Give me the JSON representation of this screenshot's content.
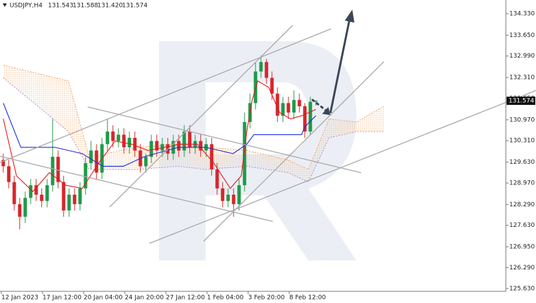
{
  "chart_data": {
    "type": "candlestick",
    "title": "USDJPY,H4",
    "header_values": [
      "131.543",
      "131.588",
      "131.420",
      "131.574"
    ],
    "up_color": "#1f9a4a",
    "down_color": "#d6262b",
    "x": [
      0.6,
      1.6,
      2.6,
      3.6,
      4.6,
      5.6,
      6.6,
      7.6,
      8.6,
      9.6,
      10.6,
      11.6,
      12.6,
      13.6,
      14.6,
      15.6,
      16.6,
      17.6,
      18.6,
      19.6,
      20.6,
      21.6,
      22.6,
      23.6,
      24.6,
      25.6,
      26.6,
      27.6,
      28.6,
      29.6,
      30.6,
      31.6,
      32.6,
      33.6,
      34.6,
      35.6,
      36.6,
      37.6,
      38.6,
      39.6,
      40.6,
      41.6,
      42.6,
      43.6,
      44.6,
      45.6,
      46.6,
      47.6,
      48.6,
      49.6,
      50.6,
      51.6,
      52.6,
      53.6,
      54.6,
      55.6,
      56.6,
      57.6
    ],
    "open": [
      129.7,
      129.5,
      129.0,
      128.3,
      127.9,
      128.5,
      128.9,
      128.6,
      128.4,
      128.9,
      129.8,
      129.0,
      128.1,
      128.6,
      128.3,
      128.8,
      129.6,
      130.0,
      129.3,
      130.2,
      130.6,
      130.3,
      130.5,
      130.1,
      130.4,
      130.0,
      129.5,
      129.8,
      130.3,
      130.0,
      130.2,
      129.9,
      130.3,
      130.0,
      130.6,
      130.1,
      130.3,
      130.0,
      130.2,
      129.4,
      128.8,
      128.4,
      128.6,
      128.3,
      128.9,
      130.9,
      131.5,
      132.5,
      132.8,
      132.3,
      131.8,
      131.1,
      131.5,
      131.2,
      131.6,
      131.4,
      130.6,
      131.543
    ],
    "high": [
      129.9,
      129.7,
      129.2,
      128.5,
      128.7,
      129.1,
      129.1,
      128.8,
      129.1,
      131.0,
      130.0,
      129.2,
      128.8,
      128.8,
      129.0,
      129.8,
      130.3,
      130.2,
      130.4,
      131.0,
      130.8,
      130.7,
      130.7,
      130.6,
      130.6,
      130.2,
      129.9,
      130.5,
      130.5,
      130.4,
      130.4,
      130.5,
      130.5,
      130.8,
      130.8,
      130.5,
      130.5,
      130.4,
      130.4,
      129.6,
      129.0,
      128.8,
      128.8,
      129.1,
      131.2,
      131.8,
      132.8,
      133.0,
      132.9,
      132.5,
      132.0,
      131.7,
      131.7,
      131.9,
      131.8,
      131.5,
      131.7,
      131.588
    ],
    "low": [
      129.3,
      128.8,
      128.1,
      127.5,
      127.7,
      128.3,
      128.4,
      128.2,
      128.2,
      128.7,
      128.8,
      127.9,
      127.9,
      128.1,
      128.1,
      128.6,
      129.4,
      129.1,
      129.1,
      130.0,
      130.1,
      130.1,
      129.9,
      129.9,
      129.8,
      129.3,
      129.3,
      129.6,
      129.8,
      129.8,
      129.7,
      129.7,
      129.8,
      129.8,
      129.9,
      129.9,
      129.8,
      129.8,
      129.2,
      128.6,
      128.2,
      128.2,
      127.9,
      128.1,
      128.7,
      130.7,
      131.3,
      132.3,
      132.1,
      131.6,
      130.9,
      130.9,
      131.0,
      131.0,
      131.2,
      130.4,
      130.5,
      131.42
    ],
    "close": [
      129.5,
      129.0,
      128.3,
      127.9,
      128.5,
      128.9,
      128.6,
      128.4,
      128.9,
      129.8,
      129.0,
      128.1,
      128.6,
      128.3,
      128.8,
      129.6,
      130.0,
      129.3,
      130.2,
      130.6,
      130.3,
      130.5,
      130.1,
      130.4,
      130.0,
      129.5,
      129.8,
      130.3,
      130.0,
      130.2,
      129.9,
      130.3,
      130.0,
      130.6,
      130.1,
      130.3,
      130.0,
      130.2,
      129.4,
      128.8,
      128.4,
      128.6,
      128.3,
      128.9,
      130.9,
      131.5,
      132.5,
      132.8,
      132.3,
      131.8,
      131.1,
      131.5,
      131.2,
      131.6,
      131.4,
      130.6,
      131.54,
      131.574
    ],
    "series": [
      {
        "color": "#e8141c",
        "x": [
          0.6,
          3,
          6,
          9,
          12,
          15,
          18,
          21,
          24,
          27,
          30,
          33,
          36,
          39,
          42,
          44,
          45,
          46,
          47,
          49,
          51,
          53,
          55,
          57.6
        ],
        "values": [
          131.0,
          129.2,
          128.7,
          129.3,
          128.9,
          128.8,
          129.6,
          130.3,
          130.2,
          130.0,
          130.1,
          130.2,
          130.2,
          129.6,
          128.8,
          129.2,
          130.6,
          131.6,
          132.2,
          132.0,
          131.2,
          131.0,
          131.1,
          131.3
        ]
      },
      {
        "color": "#1b2bdc",
        "x": [
          0.6,
          3.8,
          10,
          15,
          18.75,
          22.5,
          26.25,
          32.5,
          37.5,
          42.5,
          45,
          46.3,
          55,
          55.6,
          57.6
        ],
        "values": [
          131.5,
          130.1,
          130.1,
          129.9,
          129.5,
          129.5,
          129.8,
          130.1,
          130.1,
          129.9,
          130.2,
          130.5,
          130.5,
          130.75,
          131.1
        ]
      }
    ],
    "cloud": {
      "color_a": "#f0a060",
      "color_b": "#b48ad0",
      "x": [
        0.6,
        12.5,
        16.25,
        25,
        32.5,
        37.5,
        45,
        52.5,
        56.25,
        60,
        65,
        70
      ],
      "span_a": [
        132.7,
        132.2,
        129.8,
        130.1,
        130.2,
        130.1,
        130.0,
        129.7,
        129.4,
        131.0,
        130.9,
        131.4
      ],
      "span_b": [
        132.3,
        130.6,
        129.4,
        129.4,
        129.5,
        129.4,
        129.5,
        129.3,
        129.0,
        130.4,
        130.6,
        130.6
      ]
    },
    "xlim": [
      0,
      92.25
    ],
    "xticks": [
      {
        "value": 0.25,
        "label": "12 Jan 2023"
      },
      {
        "value": 7.75,
        "label": "17 Jan 12:00"
      },
      {
        "value": 15.25,
        "label": "20 Jan 04:00"
      },
      {
        "value": 22.75,
        "label": "24 Jan 20:00"
      },
      {
        "value": 30.25,
        "label": "27 Jan 12:00"
      },
      {
        "value": 37.75,
        "label": "1 Feb 04:00"
      },
      {
        "value": 45.25,
        "label": "3 Feb 20:00"
      },
      {
        "value": 52.75,
        "label": "8 Feb 12:00"
      }
    ],
    "ylim": [
      125.54,
      134.764
    ],
    "yticks": [
      {
        "value": 134.33,
        "label": "134.330"
      },
      {
        "value": 133.65,
        "label": "133.650"
      },
      {
        "value": 132.99,
        "label": "132.990"
      },
      {
        "value": 132.31,
        "label": "132.310"
      },
      {
        "value": 131.65,
        "label": "131.650"
      },
      {
        "value": 130.97,
        "label": "130.970"
      },
      {
        "value": 130.31,
        "label": "130.310"
      },
      {
        "value": 129.63,
        "label": "129.630"
      },
      {
        "value": 128.97,
        "label": "128.970"
      },
      {
        "value": 128.29,
        "label": "128.290"
      },
      {
        "value": 127.63,
        "label": "127.630"
      },
      {
        "value": 126.95,
        "label": "126.950"
      },
      {
        "value": 126.29,
        "label": "126.290"
      },
      {
        "value": 125.63,
        "label": "125.630"
      }
    ]
  }
}
